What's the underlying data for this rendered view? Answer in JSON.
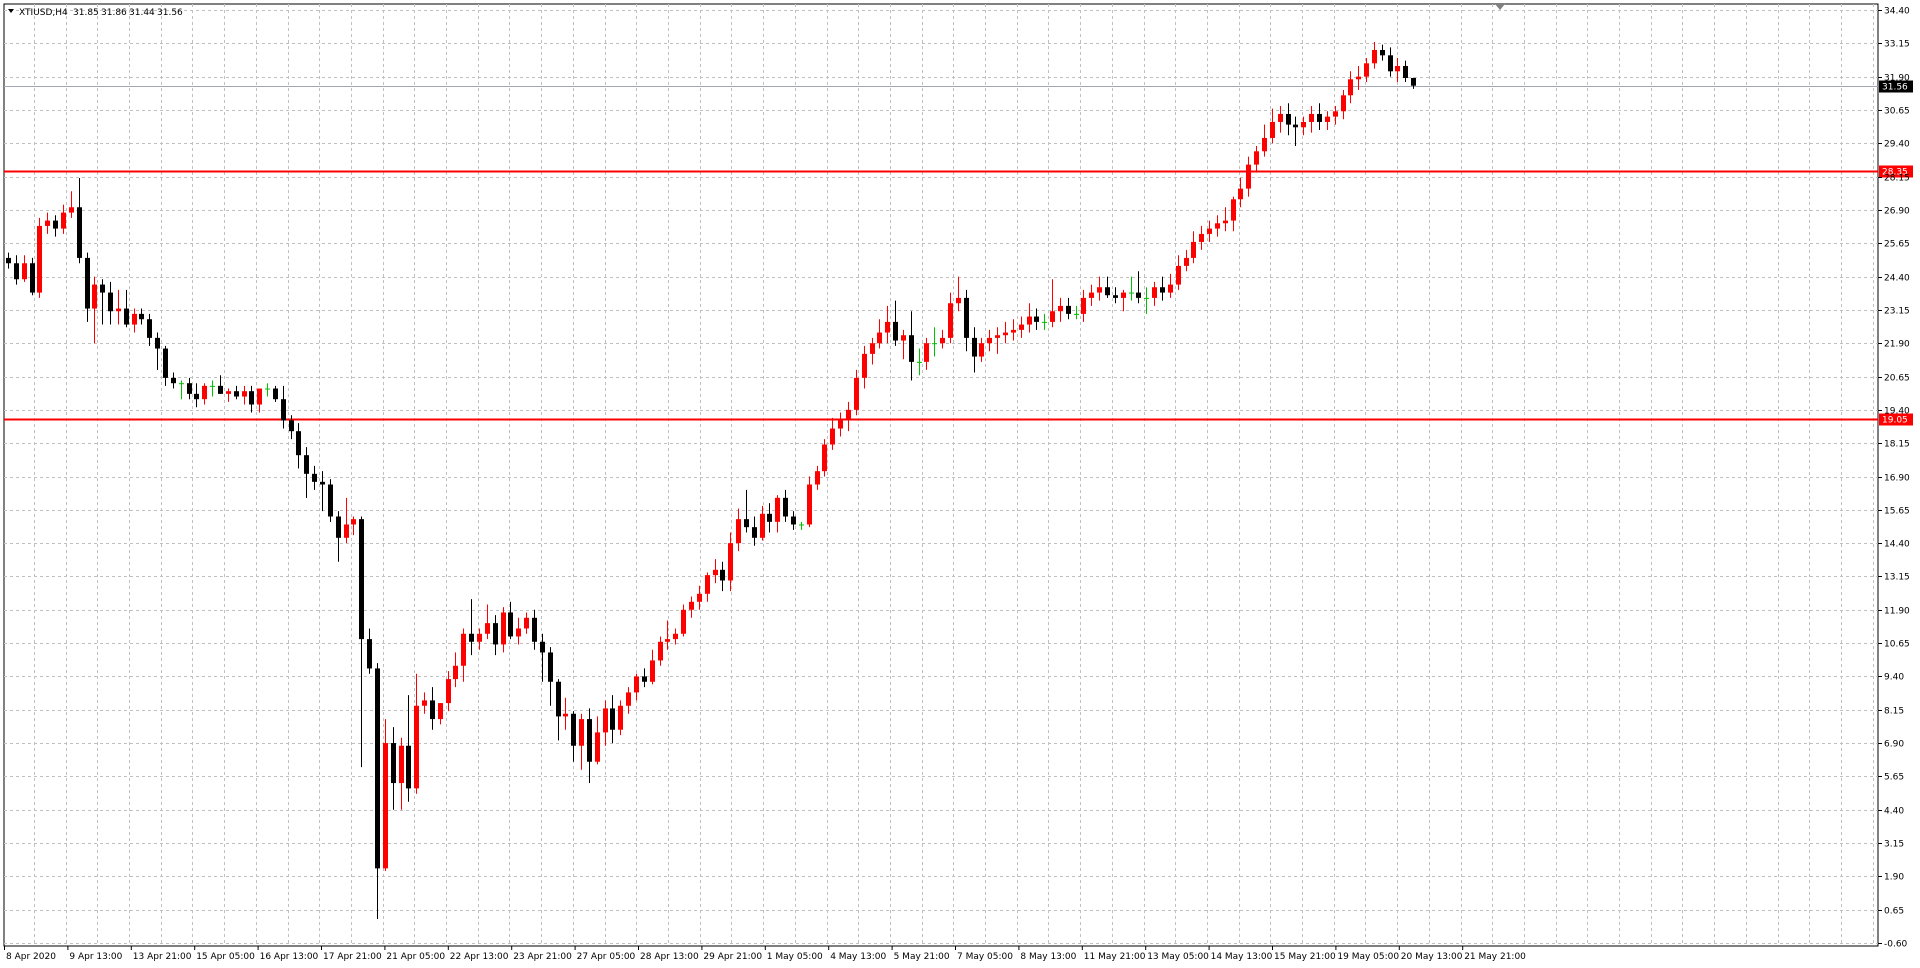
{
  "header": {
    "symbol": "XTIUSD,H4",
    "open": "31.85",
    "high": "31.86",
    "low": "31.44",
    "close": "31.56"
  },
  "chart_data": {
    "type": "candlestick",
    "symbol": "XTIUSD",
    "timeframe": "H4",
    "ylim": [
      -0.6,
      34.4
    ],
    "y_ticks": [
      "34.40",
      "33.15",
      "31.90",
      "30.65",
      "29.40",
      "28.15",
      "26.90",
      "25.65",
      "24.40",
      "23.15",
      "21.90",
      "20.65",
      "19.40",
      "18.15",
      "16.90",
      "15.65",
      "14.40",
      "13.15",
      "11.90",
      "10.65",
      "9.40",
      "8.15",
      "6.90",
      "5.65",
      "4.40",
      "3.15",
      "1.90",
      "0.65",
      "-0.60"
    ],
    "x_tick_labels": [
      "8 Apr 2020",
      "9 Apr 13:00",
      "13 Apr 21:00",
      "15 Apr 05:00",
      "16 Apr 13:00",
      "17 Apr 21:00",
      "21 Apr 05:00",
      "22 Apr 13:00",
      "23 Apr 21:00",
      "27 Apr 05:00",
      "28 Apr 13:00",
      "29 Apr 21:00",
      "1 May 05:00",
      "4 May 13:00",
      "5 May 21:00",
      "7 May 05:00",
      "8 May 13:00",
      "11 May 21:00",
      "13 May 05:00",
      "14 May 13:00",
      "15 May 21:00",
      "19 May 05:00",
      "20 May 13:00",
      "21 May 21:00"
    ],
    "grid": true,
    "current_price": "31.56",
    "current_price_color": "#000000",
    "horizontal_lines": [
      {
        "price": 28.35,
        "label": "28.35",
        "color": "#ff0000"
      },
      {
        "price": 19.05,
        "label": "19.05",
        "color": "#ff0000"
      }
    ],
    "bull_color": "#ff0000",
    "bear_color": "#000000",
    "doji_color": "#00c000",
    "ohlc": [
      [
        25.1,
        25.3,
        24.7,
        24.9
      ],
      [
        24.9,
        25.2,
        24.1,
        24.3
      ],
      [
        24.3,
        25.2,
        24.2,
        24.9
      ],
      [
        24.9,
        25.1,
        23.7,
        23.8
      ],
      [
        23.8,
        26.6,
        23.6,
        26.3
      ],
      [
        26.3,
        26.8,
        26.0,
        26.5
      ],
      [
        26.5,
        26.7,
        25.9,
        26.2
      ],
      [
        26.2,
        27.1,
        26.0,
        26.8
      ],
      [
        26.8,
        27.6,
        26.6,
        27.0
      ],
      [
        27.0,
        28.1,
        24.9,
        25.1
      ],
      [
        25.1,
        25.3,
        22.7,
        23.2
      ],
      [
        23.2,
        24.4,
        21.9,
        24.1
      ],
      [
        24.1,
        24.3,
        22.6,
        23.8
      ],
      [
        23.8,
        24.2,
        22.6,
        23.1
      ],
      [
        23.1,
        23.9,
        22.6,
        23.2
      ],
      [
        23.2,
        23.9,
        22.5,
        22.6
      ],
      [
        22.6,
        23.2,
        22.3,
        23.0
      ],
      [
        23.0,
        23.2,
        22.6,
        22.8
      ],
      [
        22.8,
        23.0,
        21.8,
        22.1
      ],
      [
        22.1,
        22.3,
        20.9,
        21.7
      ],
      [
        21.7,
        21.8,
        20.3,
        20.6
      ],
      [
        20.6,
        20.8,
        20.2,
        20.4
      ],
      [
        20.4,
        20.5,
        19.8,
        20.4
      ],
      [
        20.4,
        20.6,
        19.8,
        20.0
      ],
      [
        20.0,
        20.4,
        19.5,
        19.8
      ],
      [
        19.8,
        20.4,
        19.6,
        20.3
      ],
      [
        20.3,
        20.5,
        19.9,
        20.3
      ],
      [
        20.3,
        20.7,
        20.0,
        20.0
      ],
      [
        20.0,
        20.2,
        19.7,
        20.1
      ],
      [
        20.1,
        20.3,
        19.8,
        19.9
      ],
      [
        19.9,
        20.3,
        19.6,
        20.1
      ],
      [
        20.1,
        20.3,
        19.3,
        19.6
      ],
      [
        19.6,
        20.2,
        19.3,
        20.2
      ],
      [
        20.2,
        20.4,
        19.9,
        20.2
      ],
      [
        20.2,
        20.3,
        19.7,
        19.8
      ],
      [
        19.8,
        20.3,
        18.7,
        19.0
      ],
      [
        19.0,
        19.2,
        18.3,
        18.6
      ],
      [
        18.6,
        18.9,
        17.2,
        17.7
      ],
      [
        17.7,
        18.0,
        16.1,
        17.0
      ],
      [
        17.0,
        17.3,
        16.4,
        16.7
      ],
      [
        16.7,
        17.1,
        15.6,
        16.6
      ],
      [
        16.6,
        16.8,
        15.2,
        15.4
      ],
      [
        15.4,
        15.6,
        13.7,
        14.6
      ],
      [
        14.6,
        16.1,
        14.4,
        15.1
      ],
      [
        15.1,
        15.4,
        14.7,
        15.3
      ],
      [
        15.3,
        15.4,
        6.0,
        10.8
      ],
      [
        10.8,
        11.2,
        9.5,
        9.7
      ],
      [
        9.7,
        9.9,
        0.3,
        2.2
      ],
      [
        2.2,
        7.8,
        2.1,
        6.9
      ],
      [
        6.9,
        7.5,
        4.4,
        5.4
      ],
      [
        5.4,
        7.1,
        4.4,
        6.8
      ],
      [
        6.8,
        8.7,
        4.7,
        5.2
      ],
      [
        5.2,
        9.5,
        5.0,
        8.3
      ],
      [
        8.3,
        8.8,
        8.0,
        8.5
      ],
      [
        8.5,
        9.0,
        7.4,
        7.8
      ],
      [
        7.8,
        8.4,
        7.6,
        8.4
      ],
      [
        8.4,
        9.6,
        8.1,
        9.3
      ],
      [
        9.3,
        10.3,
        9.0,
        9.8
      ],
      [
        9.8,
        11.2,
        9.2,
        11.0
      ],
      [
        11.0,
        12.3,
        10.2,
        10.7
      ],
      [
        10.7,
        11.2,
        10.4,
        11.0
      ],
      [
        11.0,
        12.1,
        10.8,
        11.4
      ],
      [
        11.4,
        11.7,
        10.2,
        10.6
      ],
      [
        10.6,
        12.0,
        10.3,
        11.8
      ],
      [
        11.8,
        12.2,
        10.8,
        10.9
      ],
      [
        10.9,
        11.6,
        10.6,
        11.2
      ],
      [
        11.2,
        11.8,
        11.0,
        11.6
      ],
      [
        11.6,
        11.9,
        10.4,
        10.7
      ],
      [
        10.7,
        11.0,
        9.2,
        10.3
      ],
      [
        10.3,
        10.5,
        8.3,
        9.2
      ],
      [
        9.2,
        9.3,
        7.0,
        7.9
      ],
      [
        7.9,
        8.6,
        7.4,
        8.0
      ],
      [
        8.0,
        8.1,
        6.2,
        6.8
      ],
      [
        6.8,
        8.0,
        5.9,
        7.8
      ],
      [
        7.8,
        8.2,
        5.4,
        6.2
      ],
      [
        6.2,
        7.9,
        6.1,
        7.3
      ],
      [
        7.3,
        8.5,
        6.8,
        8.2
      ],
      [
        8.2,
        8.7,
        6.9,
        7.4
      ],
      [
        7.4,
        8.5,
        7.2,
        8.3
      ],
      [
        8.3,
        9.0,
        8.0,
        8.8
      ],
      [
        8.8,
        9.5,
        8.5,
        9.4
      ],
      [
        9.4,
        9.7,
        9.0,
        9.2
      ],
      [
        9.2,
        10.4,
        9.1,
        10.0
      ],
      [
        10.0,
        10.9,
        9.8,
        10.7
      ],
      [
        10.7,
        11.5,
        10.4,
        10.8
      ],
      [
        10.8,
        11.2,
        10.6,
        11.0
      ],
      [
        11.0,
        12.1,
        10.9,
        11.9
      ],
      [
        11.9,
        12.4,
        11.6,
        12.2
      ],
      [
        12.2,
        12.8,
        11.9,
        12.5
      ],
      [
        12.5,
        13.3,
        12.2,
        13.2
      ],
      [
        13.2,
        13.8,
        12.9,
        13.4
      ],
      [
        13.4,
        13.7,
        12.6,
        13.0
      ],
      [
        13.0,
        14.8,
        12.6,
        14.4
      ],
      [
        14.4,
        15.7,
        14.1,
        15.3
      ],
      [
        15.3,
        16.4,
        14.8,
        15.0
      ],
      [
        15.0,
        15.4,
        14.3,
        14.6
      ],
      [
        14.6,
        15.8,
        14.5,
        15.5
      ],
      [
        15.5,
        15.9,
        14.8,
        15.2
      ],
      [
        15.2,
        16.2,
        14.8,
        16.1
      ],
      [
        16.1,
        16.4,
        15.2,
        15.4
      ],
      [
        15.4,
        15.6,
        14.9,
        15.1
      ],
      [
        15.1,
        15.2,
        14.9,
        15.1
      ],
      [
        15.1,
        16.9,
        15.0,
        16.6
      ],
      [
        16.6,
        17.3,
        16.4,
        17.1
      ],
      [
        17.1,
        18.3,
        16.9,
        18.1
      ],
      [
        18.1,
        19.1,
        17.9,
        18.7
      ],
      [
        18.7,
        19.3,
        18.4,
        19.0
      ],
      [
        19.0,
        19.7,
        18.6,
        19.4
      ],
      [
        19.4,
        20.9,
        19.2,
        20.6
      ],
      [
        20.6,
        21.8,
        20.2,
        21.5
      ],
      [
        21.5,
        22.1,
        21.1,
        21.9
      ],
      [
        21.9,
        22.8,
        21.7,
        22.3
      ],
      [
        22.3,
        23.3,
        21.9,
        22.7
      ],
      [
        22.7,
        23.5,
        21.8,
        22.0
      ],
      [
        22.0,
        22.4,
        21.3,
        22.2
      ],
      [
        22.2,
        23.1,
        20.5,
        21.2
      ],
      [
        21.2,
        21.7,
        20.7,
        21.2
      ],
      [
        21.2,
        22.1,
        20.9,
        21.9
      ],
      [
        21.9,
        22.5,
        21.4,
        21.9
      ],
      [
        21.9,
        22.4,
        21.7,
        22.1
      ],
      [
        22.1,
        23.8,
        21.9,
        23.4
      ],
      [
        23.4,
        24.4,
        23.1,
        23.6
      ],
      [
        23.6,
        23.9,
        21.6,
        22.1
      ],
      [
        22.1,
        22.5,
        20.8,
        21.4
      ],
      [
        21.4,
        22.1,
        21.2,
        21.9
      ],
      [
        21.9,
        22.4,
        21.6,
        22.1
      ],
      [
        22.1,
        22.5,
        21.5,
        22.2
      ],
      [
        22.2,
        22.7,
        21.9,
        22.3
      ],
      [
        22.3,
        22.8,
        22.0,
        22.4
      ],
      [
        22.4,
        22.9,
        22.1,
        22.6
      ],
      [
        22.6,
        23.4,
        22.3,
        22.9
      ],
      [
        22.9,
        23.2,
        22.4,
        22.7
      ],
      [
        22.7,
        23.0,
        22.4,
        22.7
      ],
      [
        22.7,
        24.3,
        22.5,
        23.1
      ],
      [
        23.1,
        23.6,
        22.7,
        23.3
      ],
      [
        23.3,
        23.6,
        22.8,
        23.0
      ],
      [
        23.0,
        23.3,
        22.8,
        23.0
      ],
      [
        23.0,
        23.9,
        22.7,
        23.6
      ],
      [
        23.6,
        24.1,
        23.3,
        23.8
      ],
      [
        23.8,
        24.4,
        23.5,
        24.0
      ],
      [
        24.0,
        24.4,
        23.6,
        23.7
      ],
      [
        23.7,
        24.0,
        23.4,
        23.6
      ],
      [
        23.6,
        23.9,
        23.1,
        23.8
      ],
      [
        23.8,
        24.4,
        23.5,
        23.8
      ],
      [
        23.8,
        24.6,
        23.4,
        23.6
      ],
      [
        23.6,
        24.0,
        23.0,
        23.6
      ],
      [
        23.6,
        24.2,
        23.3,
        24.0
      ],
      [
        24.0,
        24.4,
        23.5,
        23.8
      ],
      [
        23.8,
        24.5,
        23.6,
        24.1
      ],
      [
        24.1,
        25.2,
        23.9,
        24.8
      ],
      [
        24.8,
        25.4,
        24.6,
        25.1
      ],
      [
        25.1,
        26.1,
        24.9,
        25.7
      ],
      [
        25.7,
        26.3,
        25.4,
        26.0
      ],
      [
        26.0,
        26.5,
        25.7,
        26.2
      ],
      [
        26.2,
        26.7,
        25.9,
        26.4
      ],
      [
        26.4,
        27.0,
        26.1,
        26.5
      ],
      [
        26.5,
        27.4,
        26.1,
        27.3
      ],
      [
        27.3,
        28.1,
        27.0,
        27.7
      ],
      [
        27.7,
        28.9,
        27.4,
        28.6
      ],
      [
        28.6,
        29.3,
        28.3,
        29.1
      ],
      [
        29.1,
        30.1,
        28.9,
        29.6
      ],
      [
        29.6,
        30.7,
        29.4,
        30.2
      ],
      [
        30.2,
        30.8,
        29.8,
        30.5
      ],
      [
        30.5,
        30.9,
        29.7,
        30.1
      ],
      [
        30.1,
        30.4,
        29.3,
        30.0
      ],
      [
        30.0,
        30.4,
        29.7,
        30.2
      ],
      [
        30.2,
        30.8,
        29.8,
        30.5
      ],
      [
        30.5,
        30.9,
        29.9,
        30.2
      ],
      [
        30.2,
        30.6,
        29.9,
        30.4
      ],
      [
        30.4,
        30.8,
        30.1,
        30.6
      ],
      [
        30.6,
        31.4,
        30.3,
        31.2
      ],
      [
        31.2,
        32.1,
        30.9,
        31.8
      ],
      [
        31.8,
        32.3,
        31.4,
        31.9
      ],
      [
        31.9,
        32.6,
        31.7,
        32.4
      ],
      [
        32.4,
        33.2,
        32.2,
        32.9
      ],
      [
        32.9,
        33.1,
        32.5,
        32.7
      ],
      [
        32.7,
        33.0,
        31.9,
        32.1
      ],
      [
        32.1,
        32.6,
        31.7,
        32.3
      ],
      [
        32.3,
        32.5,
        31.7,
        31.85
      ],
      [
        31.85,
        31.86,
        31.44,
        31.56
      ]
    ]
  }
}
